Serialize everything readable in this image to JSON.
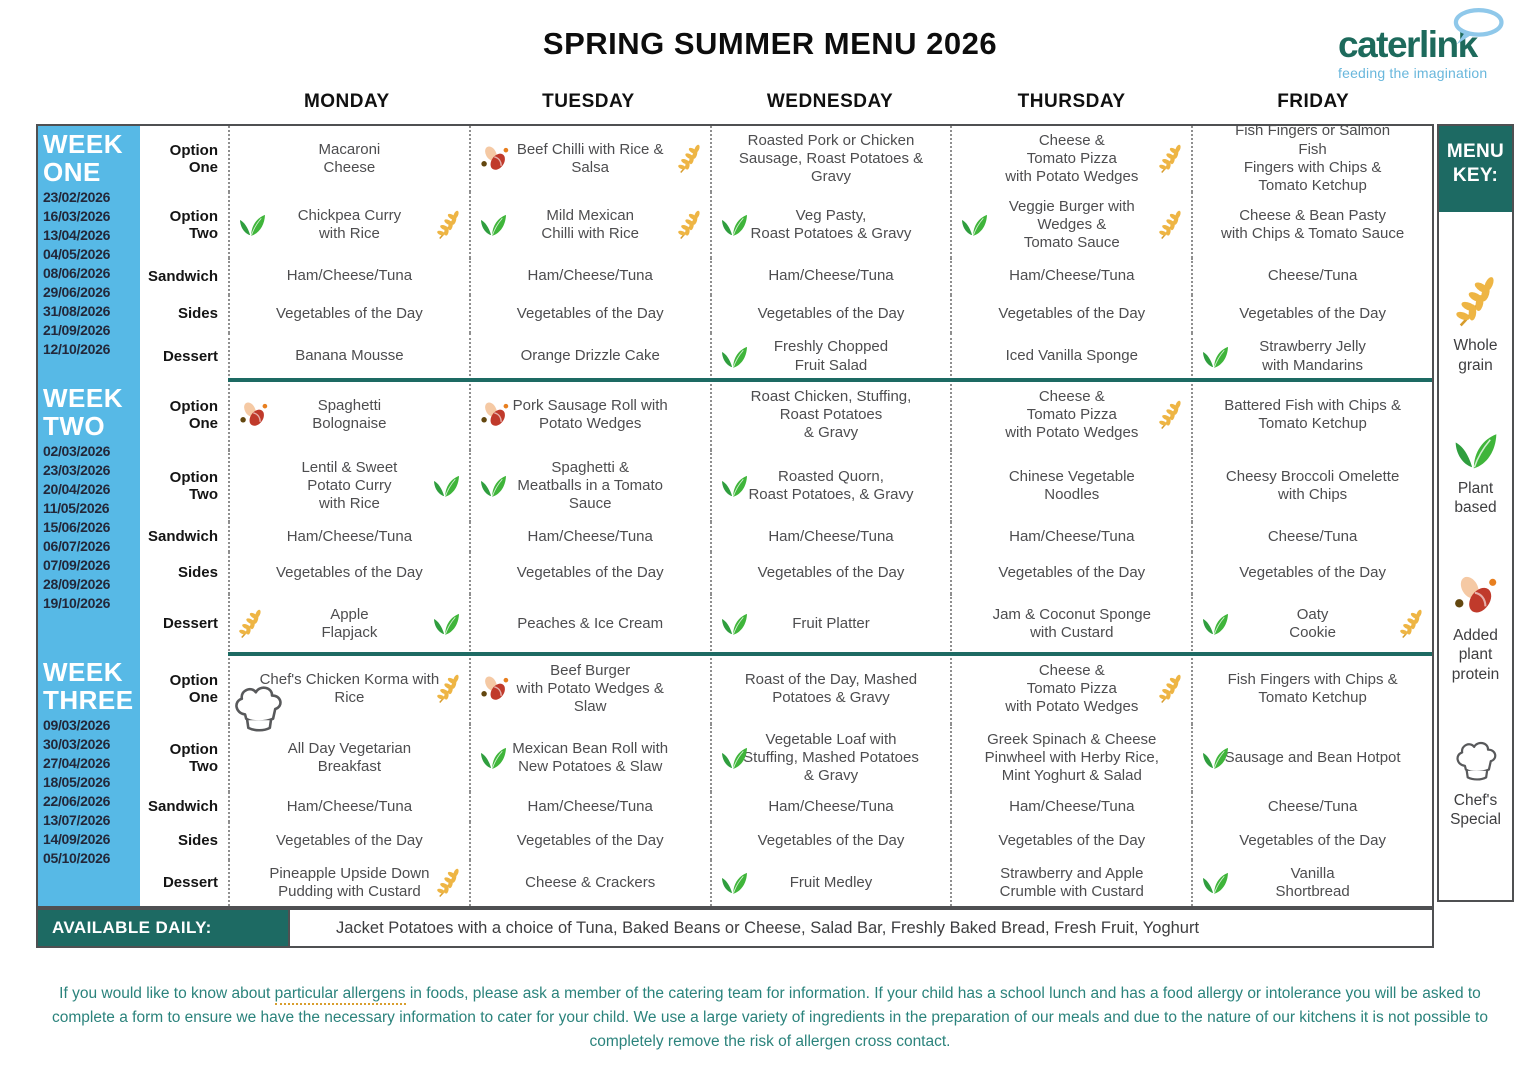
{
  "title": "SPRING SUMMER MENU 2026",
  "logo": {
    "brand": "caterlink",
    "tagline": "feeding the imagination"
  },
  "days": [
    "MONDAY",
    "TUESDAY",
    "WEDNESDAY",
    "THURSDAY",
    "FRIDAY"
  ],
  "row_labels": [
    "Option One",
    "Option Two",
    "Sandwich",
    "Sides",
    "Dessert"
  ],
  "weeks": [
    {
      "name": "WEEK ONE",
      "dates": [
        "23/02/2026",
        "16/03/2026",
        "13/04/2026",
        "04/05/2026",
        "08/06/2026",
        "29/06/2026",
        "31/08/2026",
        "21/09/2026",
        "12/10/2026"
      ],
      "rows": [
        [
          {
            "text": "Macaroni\nCheese"
          },
          {
            "text": "Beef Chilli with Rice & Salsa",
            "icons": [
              {
                "name": "added-plant-protein-icon",
                "side": "left"
              },
              {
                "name": "whole-grain-icon",
                "side": "right"
              }
            ]
          },
          {
            "text": "Roasted Pork or Chicken\nSausage, Roast Potatoes &\nGravy"
          },
          {
            "text": "Cheese &\nTomato Pizza\nwith Potato Wedges",
            "icons": [
              {
                "name": "whole-grain-icon",
                "side": "right"
              }
            ]
          },
          {
            "text": "Fish Fingers or Salmon Fish\nFingers with Chips &\nTomato Ketchup"
          }
        ],
        [
          {
            "text": "Chickpea Curry\nwith Rice",
            "icons": [
              {
                "name": "plant-based-icon",
                "side": "left"
              },
              {
                "name": "whole-grain-icon",
                "side": "right"
              }
            ]
          },
          {
            "text": "Mild Mexican\nChilli with Rice",
            "icons": [
              {
                "name": "plant-based-icon",
                "side": "left"
              },
              {
                "name": "whole-grain-icon",
                "side": "right"
              }
            ]
          },
          {
            "text": "Veg Pasty,\nRoast Potatoes & Gravy",
            "icons": [
              {
                "name": "plant-based-icon",
                "side": "left"
              }
            ]
          },
          {
            "text": "Veggie Burger with\nWedges &\nTomato Sauce",
            "icons": [
              {
                "name": "plant-based-icon",
                "side": "left"
              },
              {
                "name": "whole-grain-icon",
                "side": "right"
              }
            ]
          },
          {
            "text": "Cheese & Bean Pasty\nwith Chips & Tomato Sauce"
          }
        ],
        [
          {
            "text": "Ham/Cheese/Tuna"
          },
          {
            "text": "Ham/Cheese/Tuna"
          },
          {
            "text": "Ham/Cheese/Tuna"
          },
          {
            "text": "Ham/Cheese/Tuna"
          },
          {
            "text": "Cheese/Tuna"
          }
        ],
        [
          {
            "text": "Vegetables of the Day"
          },
          {
            "text": "Vegetables of the Day"
          },
          {
            "text": "Vegetables of the Day"
          },
          {
            "text": "Vegetables of the Day"
          },
          {
            "text": "Vegetables of the Day"
          }
        ],
        [
          {
            "text": "Banana Mousse"
          },
          {
            "text": "Orange Drizzle Cake"
          },
          {
            "text": "Freshly Chopped\nFruit Salad",
            "icons": [
              {
                "name": "plant-based-icon",
                "side": "left"
              }
            ]
          },
          {
            "text": "Iced Vanilla Sponge"
          },
          {
            "text": "Strawberry Jelly\nwith Mandarins",
            "icons": [
              {
                "name": "plant-based-icon",
                "side": "left"
              }
            ]
          }
        ]
      ]
    },
    {
      "name": "WEEK TWO",
      "dates": [
        "02/03/2026",
        "23/03/2026",
        "20/04/2026",
        "11/05/2026",
        "15/06/2026",
        "06/07/2026",
        "07/09/2026",
        "28/09/2026",
        "19/10/2026"
      ],
      "rows": [
        [
          {
            "text": "Spaghetti\nBolognaise",
            "icons": [
              {
                "name": "added-plant-protein-icon",
                "side": "left"
              }
            ]
          },
          {
            "text": "Pork Sausage Roll with\nPotato Wedges",
            "icons": [
              {
                "name": "added-plant-protein-icon",
                "side": "left"
              }
            ]
          },
          {
            "text": "Roast Chicken, Stuffing,\nRoast Potatoes\n& Gravy"
          },
          {
            "text": "Cheese &\nTomato Pizza\nwith Potato Wedges",
            "icons": [
              {
                "name": "whole-grain-icon",
                "side": "right"
              }
            ]
          },
          {
            "text": "Battered Fish with Chips &\nTomato Ketchup"
          }
        ],
        [
          {
            "text": "Lentil & Sweet\nPotato Curry\nwith Rice",
            "icons": [
              {
                "name": "plant-based-icon",
                "side": "right"
              }
            ]
          },
          {
            "text": "Spaghetti &\nMeatballs in a Tomato\nSauce",
            "icons": [
              {
                "name": "plant-based-icon",
                "side": "left"
              }
            ]
          },
          {
            "text": "Roasted Quorn,\nRoast Potatoes, & Gravy",
            "icons": [
              {
                "name": "plant-based-icon",
                "side": "left"
              }
            ]
          },
          {
            "text": "Chinese Vegetable\nNoodles"
          },
          {
            "text": "Cheesy Broccoli Omelette\nwith Chips"
          }
        ],
        [
          {
            "text": "Ham/Cheese/Tuna"
          },
          {
            "text": "Ham/Cheese/Tuna"
          },
          {
            "text": "Ham/Cheese/Tuna"
          },
          {
            "text": "Ham/Cheese/Tuna"
          },
          {
            "text": "Cheese/Tuna"
          }
        ],
        [
          {
            "text": "Vegetables of the Day"
          },
          {
            "text": "Vegetables of the Day"
          },
          {
            "text": "Vegetables of the Day"
          },
          {
            "text": "Vegetables of the Day"
          },
          {
            "text": "Vegetables of the Day"
          }
        ],
        [
          {
            "text": "Apple\nFlapjack",
            "icons": [
              {
                "name": "whole-grain-icon",
                "side": "left"
              },
              {
                "name": "plant-based-icon",
                "side": "right"
              }
            ]
          },
          {
            "text": "Peaches & Ice Cream"
          },
          {
            "text": "Fruit Platter",
            "icons": [
              {
                "name": "plant-based-icon",
                "side": "left"
              }
            ]
          },
          {
            "text": "Jam & Coconut Sponge\nwith Custard"
          },
          {
            "text": "Oaty\nCookie",
            "icons": [
              {
                "name": "plant-based-icon",
                "side": "left"
              },
              {
                "name": "whole-grain-icon",
                "side": "right"
              }
            ]
          }
        ]
      ]
    },
    {
      "name": "WEEK THREE",
      "dates": [
        "09/03/2026",
        "30/03/2026",
        "27/04/2026",
        "18/05/2026",
        "22/06/2026",
        "13/07/2026",
        "14/09/2026",
        "05/10/2026"
      ],
      "rows": [
        [
          {
            "text": "Chef's Chicken Korma with\nRice",
            "icons": [
              {
                "name": "chefs-special-icon",
                "side": "left"
              },
              {
                "name": "whole-grain-icon",
                "side": "right"
              }
            ]
          },
          {
            "text": "Beef Burger\nwith Potato Wedges &\nSlaw",
            "icons": [
              {
                "name": "added-plant-protein-icon",
                "side": "left"
              }
            ]
          },
          {
            "text": "Roast of the Day, Mashed\nPotatoes & Gravy"
          },
          {
            "text": "Cheese &\nTomato Pizza\nwith Potato Wedges",
            "icons": [
              {
                "name": "whole-grain-icon",
                "side": "right"
              }
            ]
          },
          {
            "text": "Fish Fingers with Chips &\nTomato Ketchup"
          }
        ],
        [
          {
            "text": "All Day Vegetarian\nBreakfast"
          },
          {
            "text": "Mexican Bean Roll with\nNew Potatoes & Slaw",
            "icons": [
              {
                "name": "plant-based-icon",
                "side": "left"
              }
            ]
          },
          {
            "text": "Vegetable Loaf with\nStuffing, Mashed Potatoes\n& Gravy",
            "icons": [
              {
                "name": "plant-based-icon",
                "side": "left"
              }
            ]
          },
          {
            "text": "Greek Spinach & Cheese\nPinwheel with Herby Rice,\nMint Yoghurt & Salad"
          },
          {
            "text": "Sausage and Bean Hotpot",
            "icons": [
              {
                "name": "plant-based-icon",
                "side": "left"
              }
            ]
          }
        ],
        [
          {
            "text": "Ham/Cheese/Tuna"
          },
          {
            "text": "Ham/Cheese/Tuna"
          },
          {
            "text": "Ham/Cheese/Tuna"
          },
          {
            "text": "Ham/Cheese/Tuna"
          },
          {
            "text": "Cheese/Tuna"
          }
        ],
        [
          {
            "text": "Vegetables of the Day"
          },
          {
            "text": "Vegetables of the Day"
          },
          {
            "text": "Vegetables of the Day"
          },
          {
            "text": "Vegetables of the Day"
          },
          {
            "text": "Vegetables of the Day"
          }
        ],
        [
          {
            "text": "Pineapple Upside Down\nPudding with Custard",
            "icons": [
              {
                "name": "whole-grain-icon",
                "side": "right"
              }
            ]
          },
          {
            "text": "Cheese & Crackers"
          },
          {
            "text": "Fruit Medley",
            "icons": [
              {
                "name": "plant-based-icon",
                "side": "left"
              }
            ]
          },
          {
            "text": "Strawberry and Apple\nCrumble with Custard"
          },
          {
            "text": "Vanilla\nShortbread",
            "icons": [
              {
                "name": "plant-based-icon",
                "side": "left"
              }
            ]
          }
        ]
      ]
    }
  ],
  "menu_key": {
    "title": "MENU KEY:",
    "items": [
      {
        "icon": "whole-grain-icon",
        "label": "Whole\ngrain"
      },
      {
        "icon": "plant-based-icon",
        "label": "Plant\nbased"
      },
      {
        "icon": "added-plant-protein-icon",
        "label": "Added\nplant\nprotein"
      },
      {
        "icon": "chefs-special-icon",
        "label": "Chef's\nSpecial"
      }
    ]
  },
  "available_daily": {
    "label": "AVAILABLE DAILY:",
    "text": "Jacket Potatoes with a choice of Tuna, Baked Beans or Cheese, Salad Bar, Freshly Baked Bread, Fresh Fruit, Yoghurt"
  },
  "footer": {
    "pre": "If you would like to know about ",
    "underlined": "particular allergens",
    "post": " in foods, please ask a member of the catering team for information. If your child has a school lunch and has a food allergy or intolerance you will be asked to complete a form to ensure we have the necessary information to cater for your child. We use a large variety of ingredients in the preparation of our meals and due to the nature of our kitchens it is not possible to completely remove the risk of allergen cross contact.",
    "colors": {
      "teal": "#1d6a63",
      "band_blue": "#57b9e6",
      "footer_text": "#2b837c",
      "wheat": "#eeb544",
      "leaf": "#3fb53a",
      "bean_red": "#c03a2b"
    }
  }
}
